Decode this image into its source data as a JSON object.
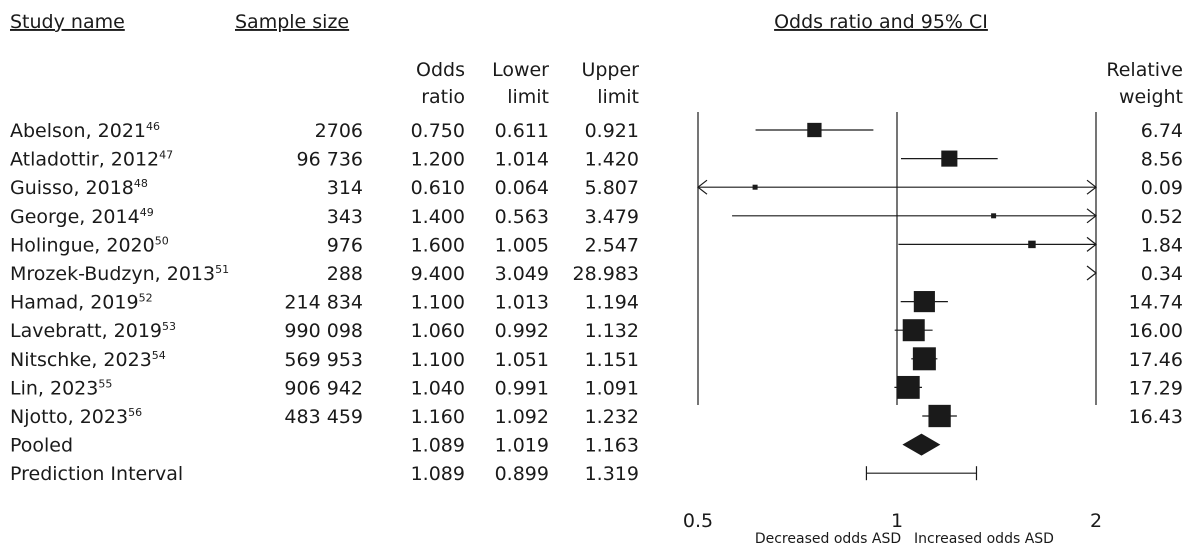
{
  "chart_data": {
    "type": "forest",
    "headers": {
      "study_name": "Study name",
      "sample_size": "Sample size",
      "plot_title": "Odds ratio and 95% CI",
      "odds_ratio": [
        "Odds",
        "ratio"
      ],
      "lower_limit": [
        "Lower",
        "limit"
      ],
      "upper_limit": [
        "Upper",
        "limit"
      ],
      "relative_weight": [
        "Relative",
        "weight"
      ]
    },
    "x_scale": "log",
    "xlim": [
      0.5,
      2
    ],
    "x_ticks": [
      "0.5",
      "1",
      "2"
    ],
    "x_tick_values": [
      0.5,
      1,
      2
    ],
    "null_value": 1,
    "left_note": "Decreased odds ASD",
    "right_note": "Increased odds ASD",
    "studies": [
      {
        "name": "Abelson, 2021",
        "ref": "46",
        "n": "2706",
        "or": "0.750",
        "lower": "0.611",
        "upper": "0.921",
        "weight": "6.74"
      },
      {
        "name": "Atladottir, 2012",
        "ref": "47",
        "n": "96 736",
        "or": "1.200",
        "lower": "1.014",
        "upper": "1.420",
        "weight": "8.56"
      },
      {
        "name": "Guisso, 2018",
        "ref": "48",
        "n": "314",
        "or": "0.610",
        "lower": "0.064",
        "upper": "5.807",
        "weight": "0.09"
      },
      {
        "name": "George, 2014",
        "ref": "49",
        "n": "343",
        "or": "1.400",
        "lower": "0.563",
        "upper": "3.479",
        "weight": "0.52"
      },
      {
        "name": "Holingue, 2020",
        "ref": "50",
        "n": "976",
        "or": "1.600",
        "lower": "1.005",
        "upper": "2.547",
        "weight": "1.84"
      },
      {
        "name": "Mrozek-Budzyn, 2013",
        "ref": "51",
        "n": "288",
        "or": "9.400",
        "lower": "3.049",
        "upper": "28.983",
        "weight": "0.34"
      },
      {
        "name": "Hamad, 2019",
        "ref": "52",
        "n": "214 834",
        "or": "1.100",
        "lower": "1.013",
        "upper": "1.194",
        "weight": "14.74"
      },
      {
        "name": "Lavebratt, 2019",
        "ref": "53",
        "n": "990 098",
        "or": "1.060",
        "lower": "0.992",
        "upper": "1.132",
        "weight": "16.00"
      },
      {
        "name": "Nitschke, 2023",
        "ref": "54",
        "n": "569 953",
        "or": "1.100",
        "lower": "1.051",
        "upper": "1.151",
        "weight": "17.46"
      },
      {
        "name": "Lin, 2023",
        "ref": "55",
        "n": "906 942",
        "or": "1.040",
        "lower": "0.991",
        "upper": "1.091",
        "weight": "17.29"
      },
      {
        "name": "Njotto, 2023",
        "ref": "56",
        "n": "483 459",
        "or": "1.160",
        "lower": "1.092",
        "upper": "1.232",
        "weight": "16.43"
      }
    ],
    "pooled": {
      "name": "Pooled",
      "or": "1.089",
      "lower": "1.019",
      "upper": "1.163"
    },
    "prediction": {
      "name": "Prediction Interval",
      "or": "1.089",
      "lower": "0.899",
      "upper": "1.319"
    }
  }
}
